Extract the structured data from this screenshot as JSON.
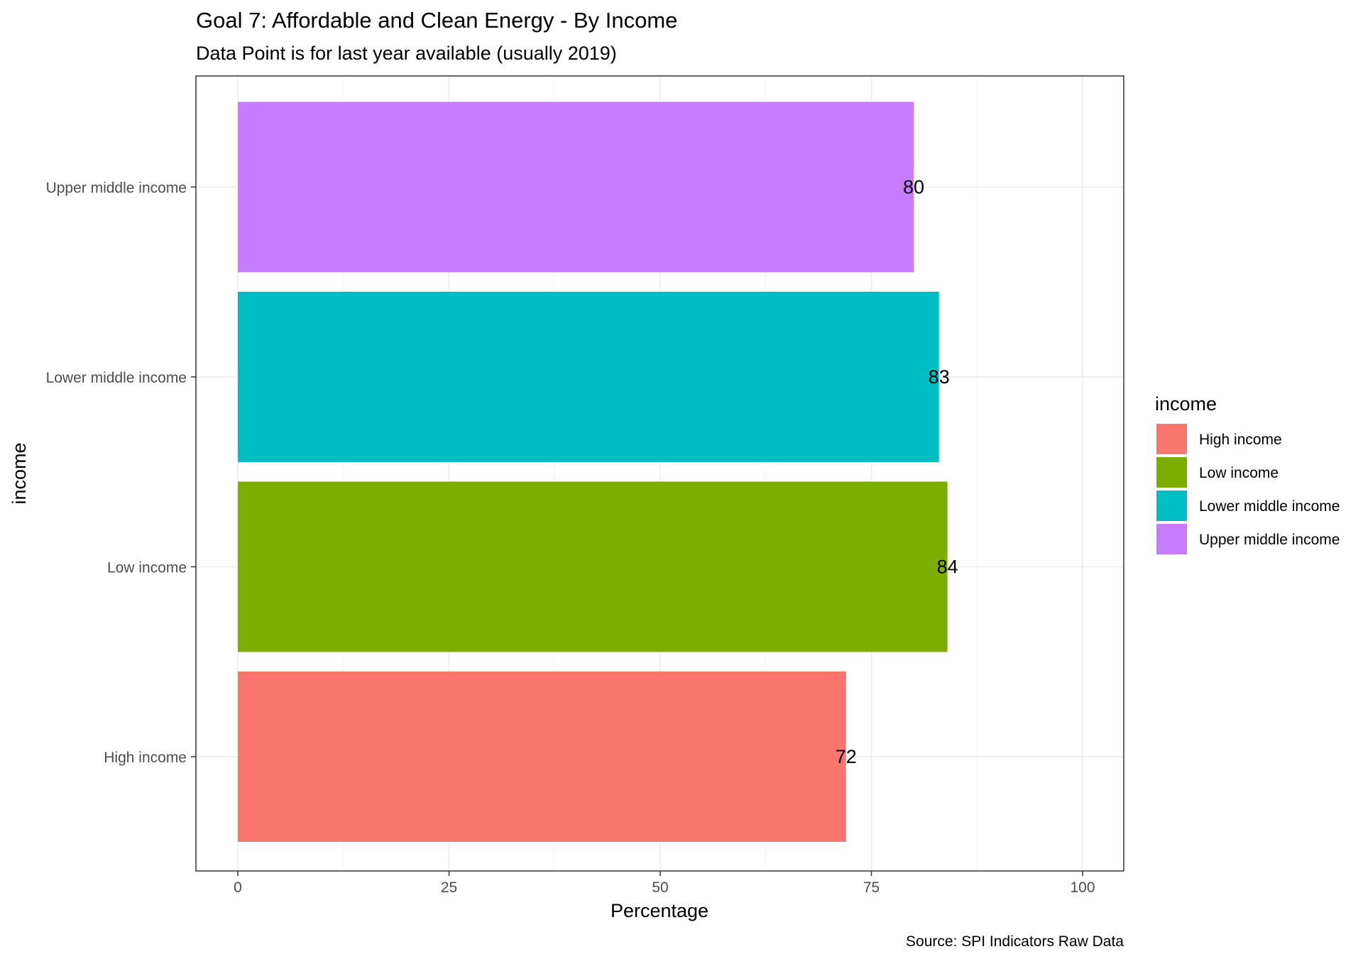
{
  "chart_data": {
    "type": "bar",
    "orientation": "horizontal",
    "title": "Goal 7: Affordable and Clean Energy - By Income",
    "subtitle": "Data Point is for last year available (usually 2019)",
    "xlabel": "Percentage",
    "ylabel": "income",
    "caption": "Source: SPI Indicators Raw Data",
    "xlim": [
      0,
      100
    ],
    "x_ticks": [
      0,
      25,
      50,
      75,
      100
    ],
    "x_tick_labels": [
      "0",
      "25",
      "50",
      "75",
      "100"
    ],
    "grid": true,
    "categories": [
      "High income",
      "Low income",
      "Lower middle income",
      "Upper middle income"
    ],
    "values": [
      72,
      84,
      83,
      80
    ],
    "data_labels": [
      "72",
      "84",
      "83",
      "80"
    ],
    "colors": [
      "#F8766D",
      "#7CAE00",
      "#00BFC4",
      "#C77CFF"
    ],
    "legend": {
      "title": "income",
      "position": "right",
      "entries": [
        "High income",
        "Low income",
        "Lower middle income",
        "Upper middle income"
      ]
    }
  }
}
